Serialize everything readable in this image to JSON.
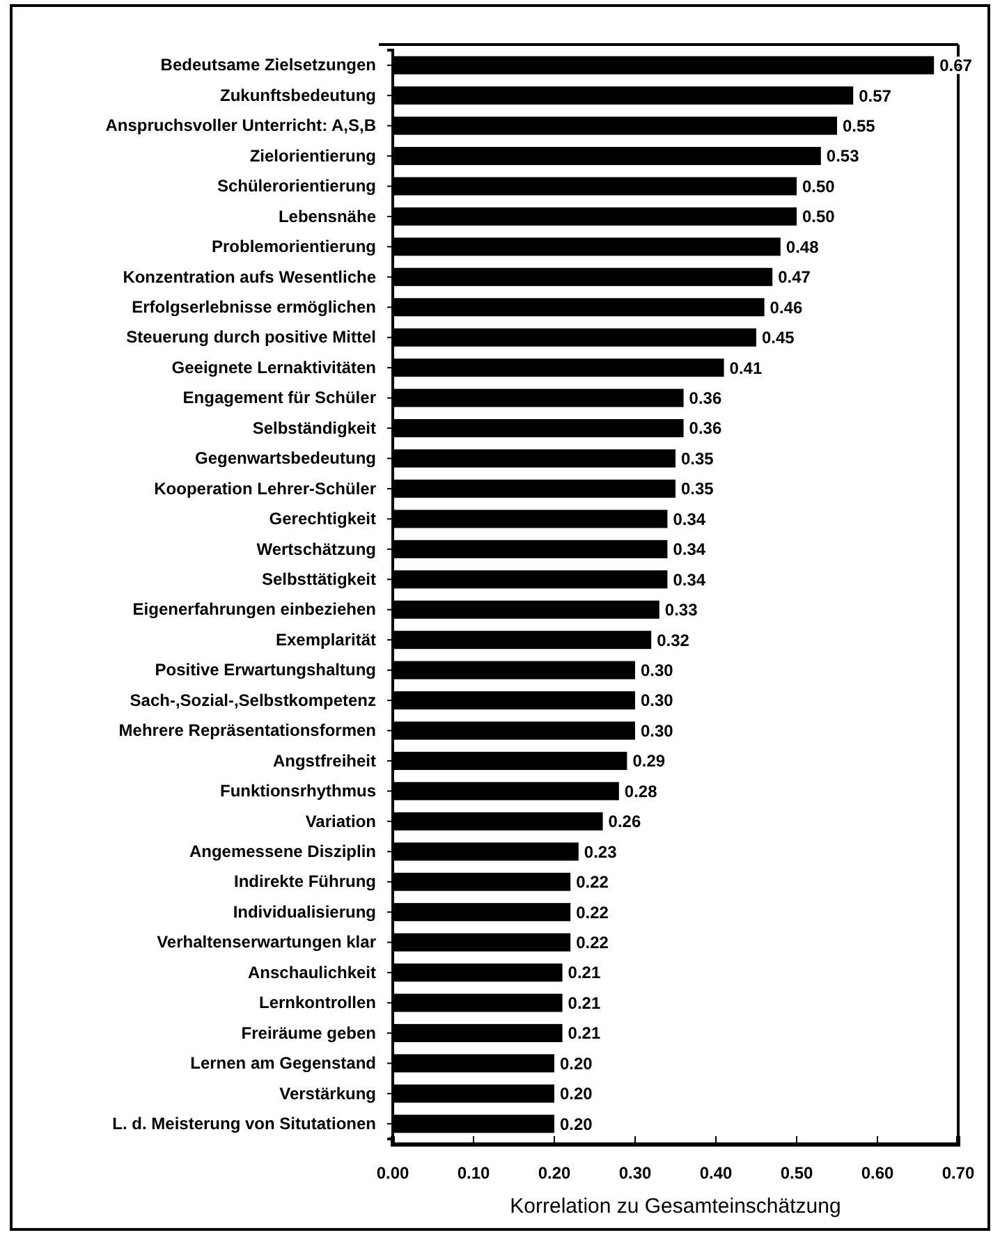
{
  "chart_data": {
    "type": "bar",
    "orientation": "horizontal",
    "xlabel": "Korrelation zu Gesamteinschätzung",
    "categories": [
      "Bedeutsame Zielsetzungen",
      "Zukunftsbedeutung",
      "Anspruchsvoller Unterricht: A,S,B",
      "Zielorientierung",
      "Schülerorientierung",
      "Lebensnähe",
      "Problemorientierung",
      "Konzentration aufs Wesentliche",
      "Erfolgserlebnisse ermöglichen",
      "Steuerung durch positive Mittel",
      "Geeignete Lernaktivitäten",
      "Engagement für Schüler",
      "Selbständigkeit",
      "Gegenwartsbedeutung",
      "Kooperation Lehrer-Schüler",
      "Gerechtigkeit",
      "Wertschätzung",
      "Selbsttätigkeit",
      "Eigenerfahrungen einbeziehen",
      "Exemplarität",
      "Positive Erwartungshaltung",
      "Sach-,Sozial-,Selbstkompetenz",
      "Mehrere Repräsentationsformen",
      "Angstfreiheit",
      "Funktionsrhythmus",
      "Variation",
      "Angemessene Disziplin",
      "Indirekte Führung",
      "Individualisierung",
      "Verhaltenserwartungen klar",
      "Anschaulichkeit",
      "Lernkontrollen",
      "Freiräume geben",
      "Lernen am Gegenstand",
      "Verstärkung",
      "L. d. Meisterung von Situtationen"
    ],
    "values": [
      0.67,
      0.57,
      0.55,
      0.53,
      0.5,
      0.5,
      0.48,
      0.47,
      0.46,
      0.45,
      0.41,
      0.36,
      0.36,
      0.35,
      0.35,
      0.34,
      0.34,
      0.34,
      0.33,
      0.32,
      0.3,
      0.3,
      0.3,
      0.29,
      0.28,
      0.26,
      0.23,
      0.22,
      0.22,
      0.22,
      0.21,
      0.21,
      0.21,
      0.2,
      0.2,
      0.2
    ],
    "color": "#000000",
    "value_labels": [
      "0.67",
      "0.57",
      "0.55",
      "0.53",
      "0.50",
      "0.50",
      "0.48",
      "0.47",
      "0.46",
      "0.45",
      "0.41",
      "0.36",
      "0.36",
      "0.35",
      "0.35",
      "0.34",
      "0.34",
      "0.34",
      "0.33",
      "0.32",
      "0.30",
      "0.30",
      "0.30",
      "0.29",
      "0.28",
      "0.26",
      "0.23",
      "0.22",
      "0.22",
      "0.22",
      "0.21",
      "0.21",
      "0.21",
      "0.20",
      "0.20",
      "0.20"
    ],
    "xlim": [
      0,
      0.7
    ],
    "xticks": [
      {
        "value": 0,
        "label": "0.00"
      },
      {
        "value": 0.1,
        "label": "0.10"
      },
      {
        "value": 0.2,
        "label": "0.20"
      },
      {
        "value": 0.3,
        "label": "0.30"
      },
      {
        "value": 0.4,
        "label": "0.40"
      },
      {
        "value": 0.5,
        "label": "0.50"
      },
      {
        "value": 0.6,
        "label": "0.60"
      },
      {
        "value": 0.7,
        "label": "0.70"
      }
    ],
    "grid": false
  }
}
